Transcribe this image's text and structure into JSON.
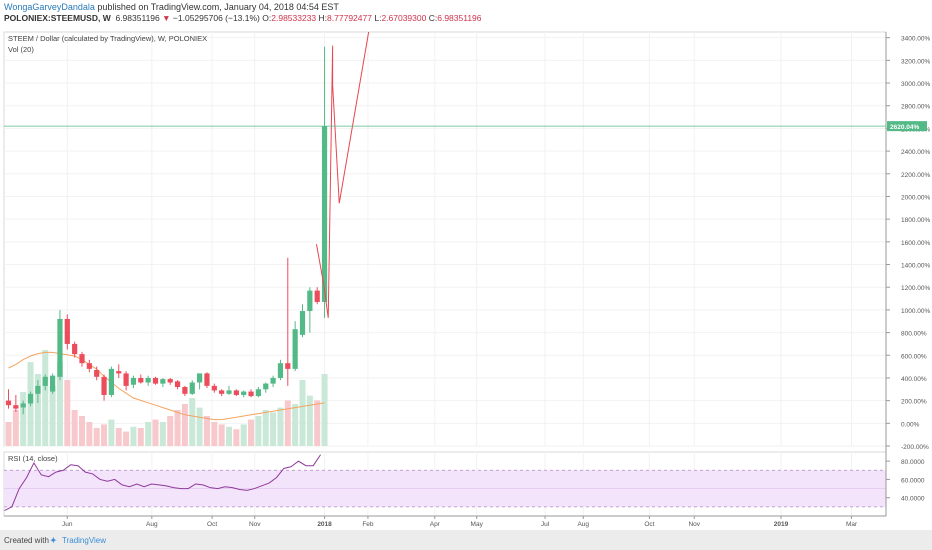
{
  "header": {
    "author": "WongaGarveyDandala",
    "published": " published on TradingView.com, January 04, 2018 04:54 EST",
    "symbol": "POLONIEX:STEEMUSD, W",
    "last": "6.98351196",
    "change_arrow": "▼",
    "change": "−1.05295706 (−13.1%)",
    "o_label": "O:",
    "o": "2.98533233",
    "h_label": "H:",
    "h": "8.77792477",
    "l_label": "L:",
    "l": "2.67039300",
    "c_label": "C:",
    "c": "6.98351196"
  },
  "legend": {
    "main": "STEEM / Dollar (calculated by TradingView), W, POLONIEX",
    "vol": "Vol (20)",
    "rsi": "RSI (14, close)"
  },
  "footer": {
    "created": "Created with",
    "brand": "TradingView"
  },
  "colors": {
    "up": "#53b987",
    "down": "#eb4d5c",
    "vol_up": "#c9e8d7",
    "vol_down": "#f7c9cd",
    "ma": "#f4a460",
    "rsi": "#8e3a99",
    "rsi_band": "#f3e3fb",
    "priceline": "#53b987",
    "trendline": "#e8464f"
  },
  "chart_data": {
    "type": "candlestick",
    "yaxis_unit": "%",
    "y_ticks": [
      "3400.00%",
      "3200.00%",
      "3000.00%",
      "2800.00%",
      "2600.00%",
      "2400.00%",
      "2200.00%",
      "2000.00%",
      "1800.00%",
      "1600.00%",
      "1400.00%",
      "1200.00%",
      "1000.00%",
      "800.00%",
      "600.00%",
      "400.00%",
      "200.00%",
      "0.00%",
      "-200.00%"
    ],
    "y_tick_values": [
      3400,
      3200,
      3000,
      2800,
      2600,
      2400,
      2200,
      2000,
      1800,
      1600,
      1400,
      1200,
      1000,
      800,
      600,
      400,
      200,
      0,
      -200
    ],
    "ylim": [
      -200,
      3450
    ],
    "current_price_label": "2620.04%",
    "current_price": 2620.04,
    "x_tick_labels": [
      "Jun",
      "Aug",
      "Oct",
      "Nov",
      "2018",
      "Feb",
      "Apr",
      "May",
      "Jul",
      "Aug",
      "Oct",
      "Nov",
      "2019",
      "Mar"
    ],
    "x_tick_index": [
      8,
      19.5,
      27.7,
      33.5,
      43,
      48.9,
      58,
      63.7,
      73,
      78.2,
      87.2,
      93.3,
      105.1,
      114.7
    ],
    "candles": [
      {
        "o": 200,
        "h": 300,
        "l": 130,
        "c": 160
      },
      {
        "o": 160,
        "h": 250,
        "l": 100,
        "c": 130
      },
      {
        "o": 140,
        "h": 200,
        "l": 80,
        "c": 175
      },
      {
        "o": 175,
        "h": 280,
        "l": 150,
        "c": 260
      },
      {
        "o": 260,
        "h": 380,
        "l": 180,
        "c": 330
      },
      {
        "o": 330,
        "h": 430,
        "l": 290,
        "c": 410
      },
      {
        "o": 280,
        "h": 440,
        "l": 260,
        "c": 420
      },
      {
        "o": 410,
        "h": 1000,
        "l": 380,
        "c": 920
      },
      {
        "o": 920,
        "h": 960,
        "l": 650,
        "c": 700
      },
      {
        "o": 700,
        "h": 720,
        "l": 580,
        "c": 610
      },
      {
        "o": 610,
        "h": 630,
        "l": 500,
        "c": 530
      },
      {
        "o": 530,
        "h": 560,
        "l": 450,
        "c": 480
      },
      {
        "o": 470,
        "h": 500,
        "l": 380,
        "c": 410
      },
      {
        "o": 410,
        "h": 430,
        "l": 200,
        "c": 250
      },
      {
        "o": 250,
        "h": 500,
        "l": 230,
        "c": 480
      },
      {
        "o": 460,
        "h": 520,
        "l": 400,
        "c": 440
      },
      {
        "o": 440,
        "h": 460,
        "l": 290,
        "c": 330
      },
      {
        "o": 340,
        "h": 420,
        "l": 310,
        "c": 400
      },
      {
        "o": 400,
        "h": 430,
        "l": 350,
        "c": 360
      },
      {
        "o": 360,
        "h": 420,
        "l": 330,
        "c": 400
      },
      {
        "o": 400,
        "h": 410,
        "l": 340,
        "c": 350
      },
      {
        "o": 350,
        "h": 400,
        "l": 320,
        "c": 390
      },
      {
        "o": 390,
        "h": 400,
        "l": 340,
        "c": 360
      },
      {
        "o": 370,
        "h": 380,
        "l": 300,
        "c": 320
      },
      {
        "o": 320,
        "h": 330,
        "l": 240,
        "c": 260
      },
      {
        "o": 260,
        "h": 380,
        "l": 250,
        "c": 360
      },
      {
        "o": 360,
        "h": 440,
        "l": 300,
        "c": 440
      },
      {
        "o": 440,
        "h": 450,
        "l": 310,
        "c": 330
      },
      {
        "o": 330,
        "h": 350,
        "l": 270,
        "c": 290
      },
      {
        "o": 290,
        "h": 300,
        "l": 240,
        "c": 260
      },
      {
        "o": 260,
        "h": 330,
        "l": 250,
        "c": 290
      },
      {
        "o": 290,
        "h": 300,
        "l": 240,
        "c": 250
      },
      {
        "o": 250,
        "h": 290,
        "l": 230,
        "c": 280
      },
      {
        "o": 280,
        "h": 300,
        "l": 230,
        "c": 240
      },
      {
        "o": 240,
        "h": 320,
        "l": 230,
        "c": 300
      },
      {
        "o": 300,
        "h": 360,
        "l": 270,
        "c": 350
      },
      {
        "o": 350,
        "h": 420,
        "l": 320,
        "c": 400
      },
      {
        "o": 400,
        "h": 560,
        "l": 380,
        "c": 530
      },
      {
        "o": 530,
        "h": 1460,
        "l": 330,
        "c": 480
      },
      {
        "o": 480,
        "h": 900,
        "l": 460,
        "c": 830
      },
      {
        "o": 780,
        "h": 1050,
        "l": 760,
        "c": 990
      },
      {
        "o": 990,
        "h": 1200,
        "l": 800,
        "c": 1170
      },
      {
        "o": 1170,
        "h": 1200,
        "l": 1050,
        "c": 1070
      },
      {
        "o": 1070,
        "h": 3320,
        "l": 930,
        "c": 2620
      }
    ],
    "volume": {
      "max": 100,
      "values": [
        20,
        30,
        45,
        70,
        60,
        80,
        50,
        70,
        55,
        30,
        25,
        20,
        15,
        18,
        22,
        15,
        12,
        16,
        15,
        20,
        22,
        20,
        25,
        30,
        35,
        40,
        32,
        25,
        20,
        18,
        16,
        14,
        18,
        22,
        25,
        30,
        28,
        32,
        38,
        35,
        55,
        42,
        38,
        60
      ],
      "ma20": [
        65,
        68,
        72,
        75,
        77,
        78,
        78,
        77,
        76,
        75,
        72,
        68,
        64,
        58,
        53,
        48,
        44,
        40,
        38,
        36,
        34,
        32,
        30,
        28,
        26,
        25,
        24,
        23,
        22,
        22,
        23,
        24,
        25,
        26,
        27,
        28,
        29,
        30,
        31,
        32,
        33,
        34,
        35,
        36
      ]
    },
    "trendline": [
      [
        41.9,
        1580
      ],
      [
        42.9,
        1220
      ],
      [
        43.5,
        930
      ],
      [
        44.1,
        3330
      ],
      [
        44.1,
        2980
      ],
      [
        45.0,
        1940
      ],
      [
        49.0,
        3450
      ]
    ],
    "rsi": {
      "ticks": [
        "80.0000",
        "60.0000",
        "40.0000"
      ],
      "tick_values": [
        80,
        60,
        40
      ],
      "band": [
        30,
        70
      ],
      "values": [
        26,
        30,
        50,
        62,
        78,
        65,
        63,
        68,
        70,
        76,
        75,
        68,
        66,
        60,
        58,
        60,
        54,
        52,
        55,
        52,
        55,
        54,
        53,
        51,
        50,
        50,
        55,
        54,
        51,
        50,
        52,
        51,
        49,
        48,
        50,
        53,
        56,
        62,
        72,
        74,
        80,
        75,
        75,
        87
      ]
    }
  }
}
